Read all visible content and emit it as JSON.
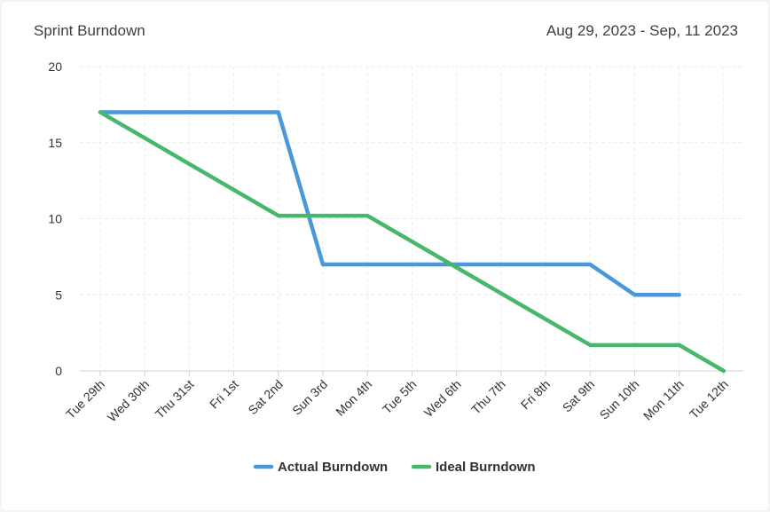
{
  "header": {
    "title": "Sprint Burndown",
    "date_range": "Aug 29, 2023 - Sep, 11 2023"
  },
  "colors": {
    "actual": "#4a98db",
    "ideal": "#47b86b",
    "grid": "#e8ecef",
    "axis": "#c9d3dc"
  },
  "chart_data": {
    "type": "line",
    "title": "Sprint Burndown",
    "categories": [
      "Tue 29th",
      "Wed 30th",
      "Thu 31st",
      "Fri 1st",
      "Sat 2nd",
      "Sun 3rd",
      "Mon 4th",
      "Tue 5th",
      "Wed 6th",
      "Thu 7th",
      "Fri 8th",
      "Sat 9th",
      "Sun 10th",
      "Mon 11th",
      "Tue 12th"
    ],
    "series": [
      {
        "name": "Actual Burndown",
        "values": [
          17,
          17,
          17,
          17,
          17,
          7,
          7,
          7,
          7,
          7,
          7,
          7,
          5,
          5,
          null
        ]
      },
      {
        "name": "Ideal Burndown",
        "values": [
          17,
          15.3,
          13.6,
          11.9,
          10.2,
          10.2,
          10.2,
          8.5,
          6.8,
          5.1,
          3.4,
          1.7,
          1.7,
          1.7,
          0
        ]
      }
    ],
    "yticks": [
      0,
      5,
      10,
      15,
      20
    ],
    "ylim": [
      0,
      20
    ],
    "grid": true,
    "legend_position": "bottom"
  }
}
